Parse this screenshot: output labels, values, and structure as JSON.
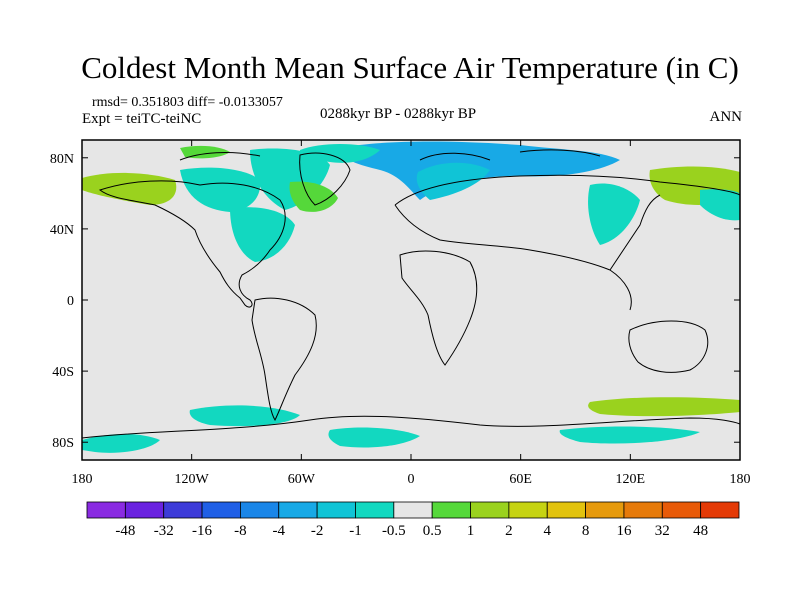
{
  "title": "Coldest Month Mean Surface Air Temperature (in C)",
  "stats": "rmsd= 0.351803  diff= -0.0133057",
  "experiment": "Expt = teiTC-teiNC",
  "period": "0288kyr BP - 0288kyr BP",
  "season": "ANN",
  "lon_ticks": [
    "180",
    "120W",
    "60W",
    "0",
    "60E",
    "120E",
    "180"
  ],
  "lat_ticks": [
    "80N",
    "40N",
    "0",
    "40S",
    "80S"
  ],
  "colorbar": {
    "labels": [
      "-48",
      "-32",
      "-16",
      "-8",
      "-4",
      "-2",
      "-1",
      "-0.5",
      "0.5",
      "1",
      "2",
      "4",
      "8",
      "16",
      "32",
      "48"
    ],
    "colors": [
      "#8a2be2",
      "#6a22e0",
      "#3d3bd8",
      "#1f5fe6",
      "#1a86e8",
      "#18a9e6",
      "#10c4d6",
      "#12d8c0",
      "#e6e6e6",
      "#55d83a",
      "#9ad21e",
      "#c6d312",
      "#e2c30e",
      "#e69a0c",
      "#e67a0a",
      "#e85a08",
      "#e43a06"
    ]
  },
  "colors": {
    "land_background": "#e6e6e6",
    "coast": "#000000"
  }
}
